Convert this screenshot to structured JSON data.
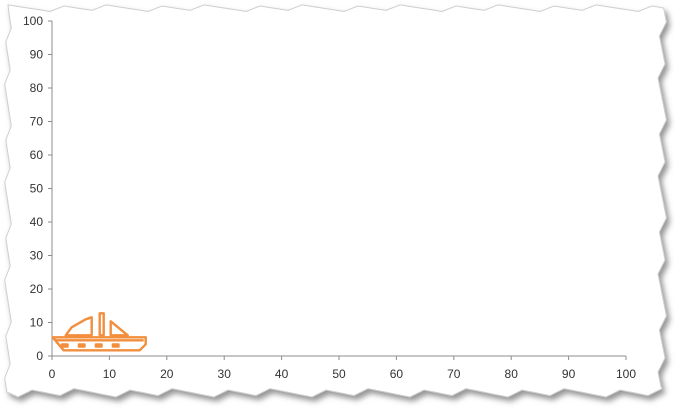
{
  "chart_data": {
    "type": "scatter",
    "title": "",
    "xlabel": "",
    "ylabel": "",
    "xlim": [
      0,
      100
    ],
    "ylim": [
      0,
      100
    ],
    "x_ticks": [
      0,
      10,
      20,
      30,
      40,
      50,
      60,
      70,
      80,
      90,
      100
    ],
    "y_ticks": [
      0,
      10,
      20,
      30,
      40,
      50,
      60,
      70,
      80,
      90,
      100
    ],
    "grid": false,
    "legend": "none",
    "series": [
      {
        "marker": "sailboat-icon",
        "color": "#f28e3c",
        "points": [
          {
            "x": 9,
            "y": 5
          }
        ]
      }
    ]
  },
  "colors": {
    "axis": "#8c8c8c",
    "frame_shadow": "#9a9a9a",
    "frame_edge": "#cfcfcf",
    "marker": "#f28e3c"
  }
}
